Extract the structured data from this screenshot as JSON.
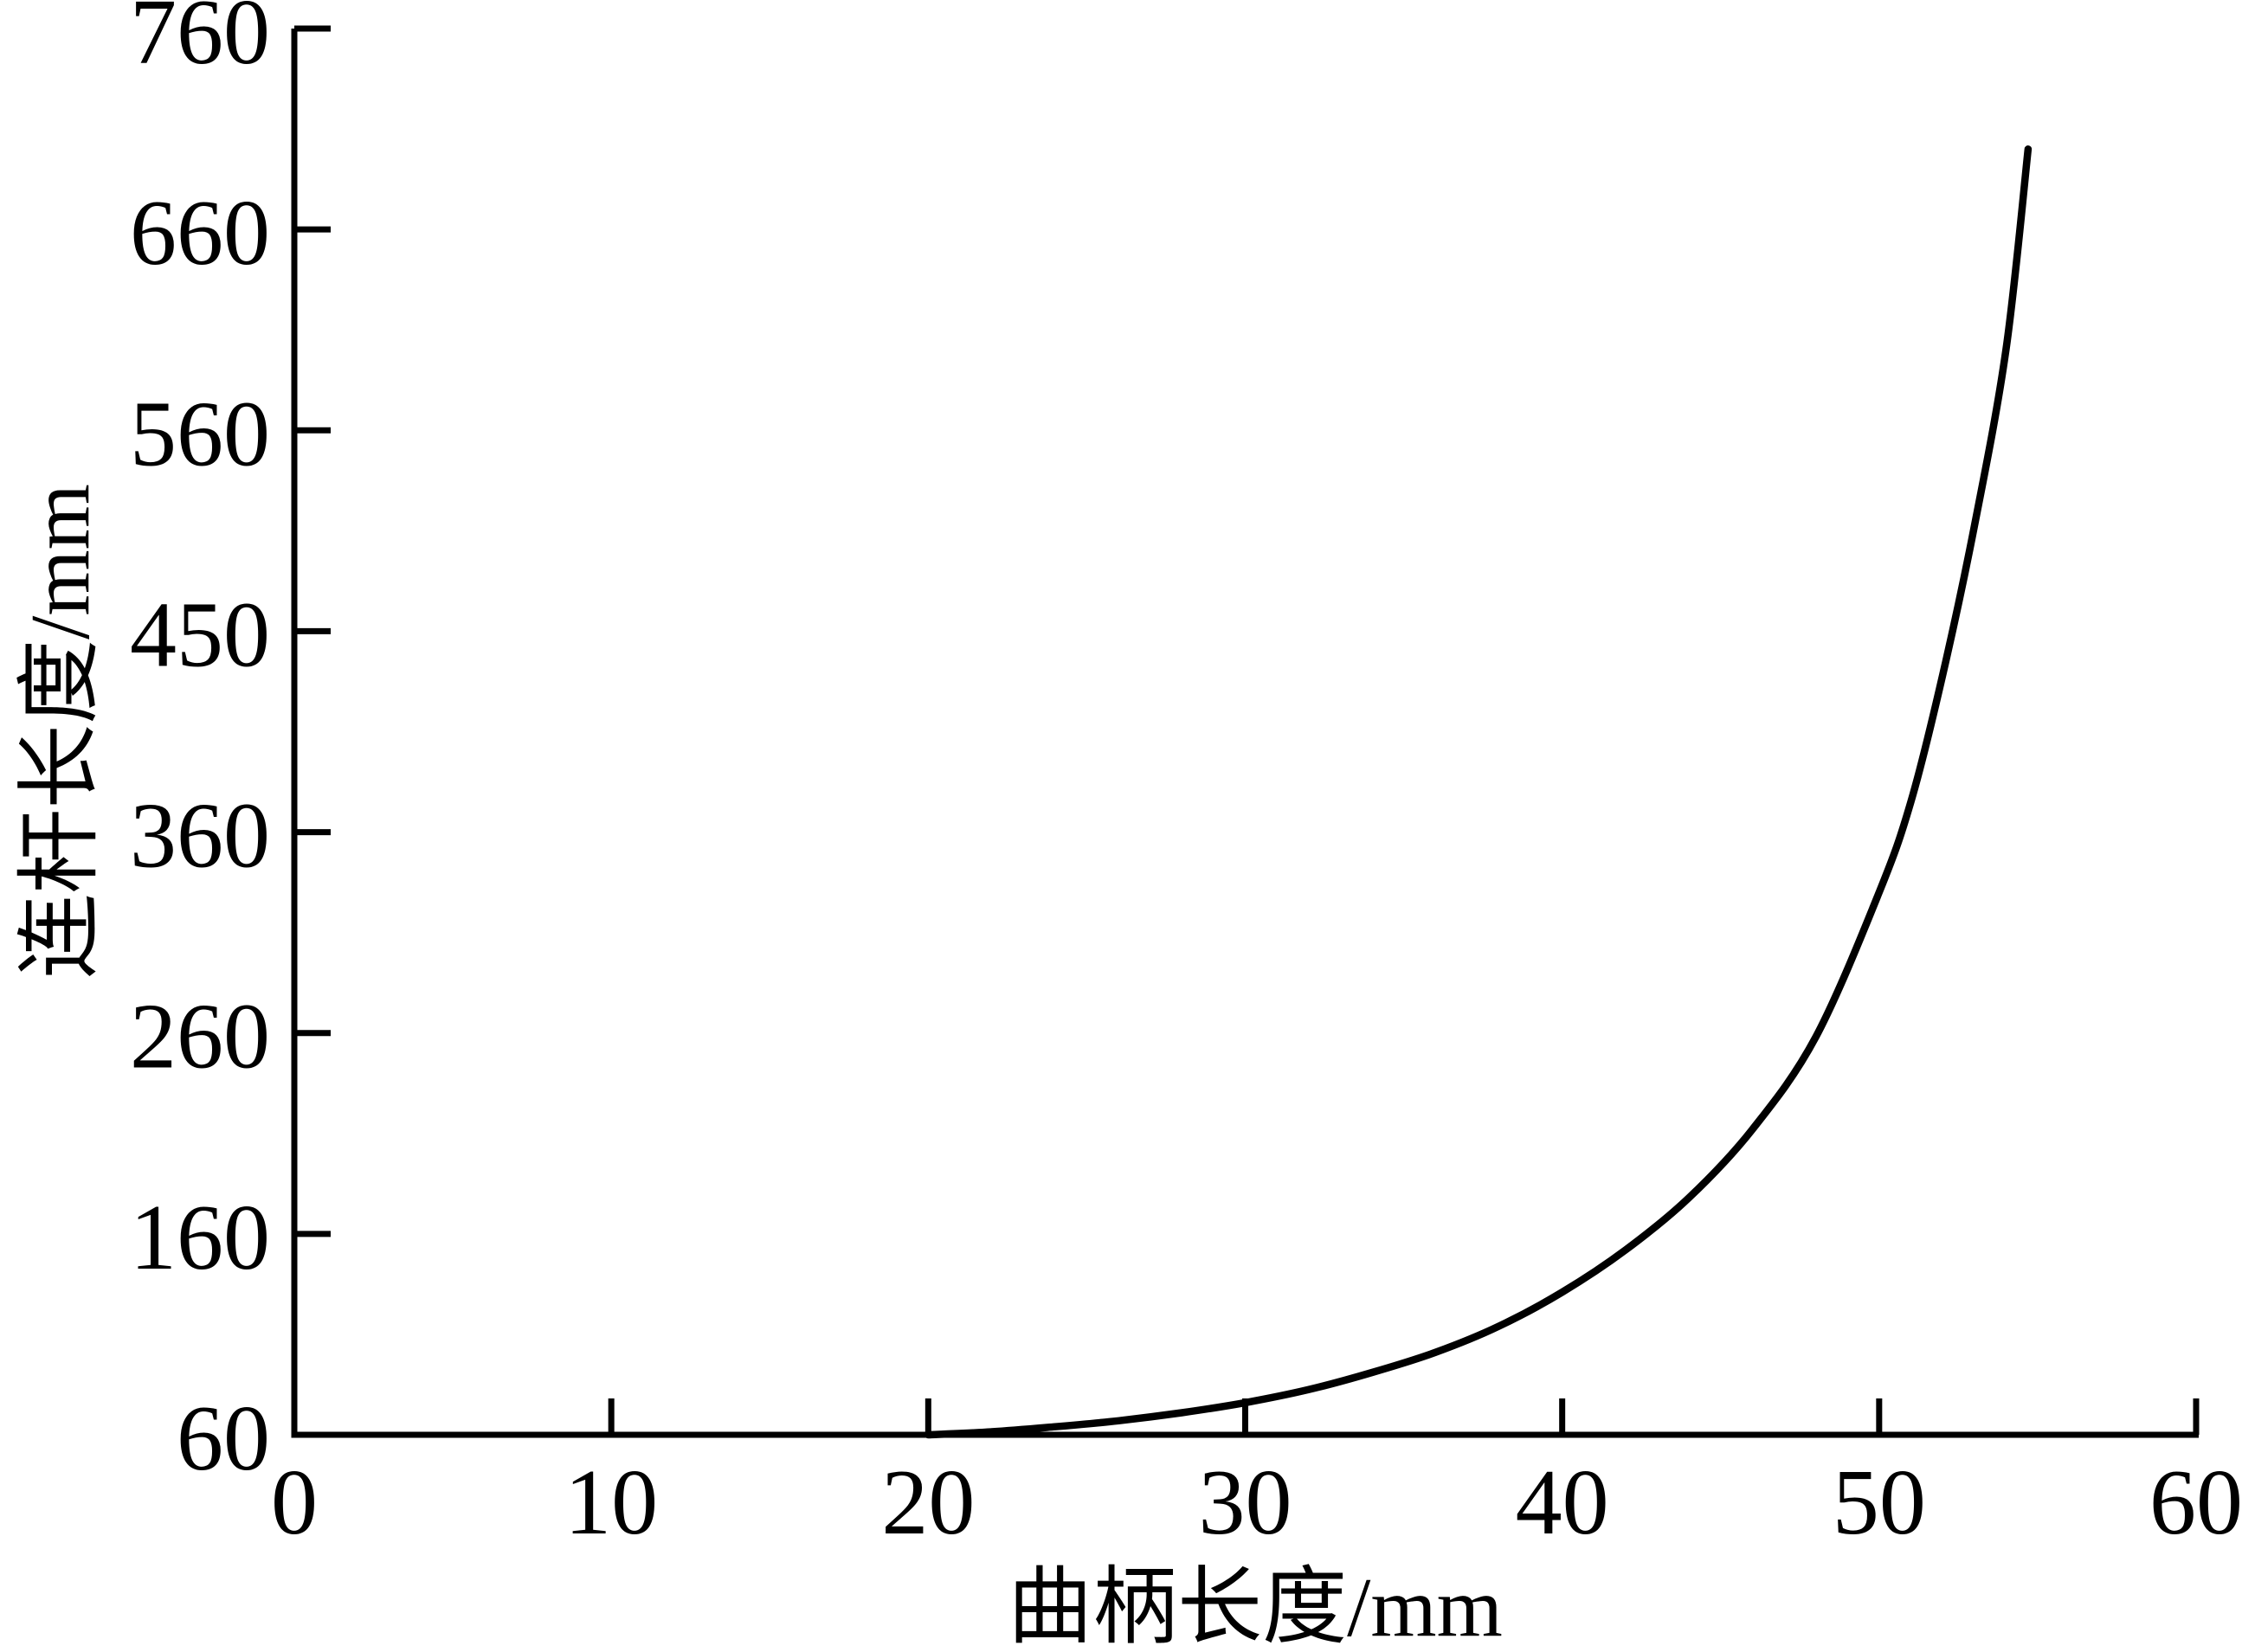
{
  "chart_data": {
    "type": "line",
    "title": "",
    "xlabel": "曲柄长度/mm",
    "ylabel": "连杆长度/mm",
    "x_range": [
      0,
      60
    ],
    "y_range": [
      60,
      760
    ],
    "x_ticks": [
      "0",
      "10",
      "20",
      "30",
      "40",
      "50",
      "60"
    ],
    "y_ticks": [
      "60",
      "160",
      "260",
      "360",
      "450",
      "560",
      "660",
      "760"
    ],
    "grid": false,
    "legend": false,
    "line_color": "#000000",
    "background": "#ffffff",
    "text_color": "#000000",
    "series": [
      {
        "points": [
          [
            20,
            60
          ],
          [
            22,
            61.5
          ],
          [
            24,
            64
          ],
          [
            26,
            67
          ],
          [
            28,
            71
          ],
          [
            30,
            76
          ],
          [
            32,
            82.5
          ],
          [
            34,
            91
          ],
          [
            36,
            101
          ],
          [
            38,
            114
          ],
          [
            40,
            131
          ],
          [
            42,
            152
          ],
          [
            44,
            178
          ],
          [
            46,
            212
          ],
          [
            48,
            258
          ],
          [
            50,
            330
          ],
          [
            51,
            375
          ],
          [
            52,
            438
          ],
          [
            53,
            512
          ],
          [
            54,
            600
          ],
          [
            54.7,
            700
          ]
        ]
      }
    ]
  }
}
